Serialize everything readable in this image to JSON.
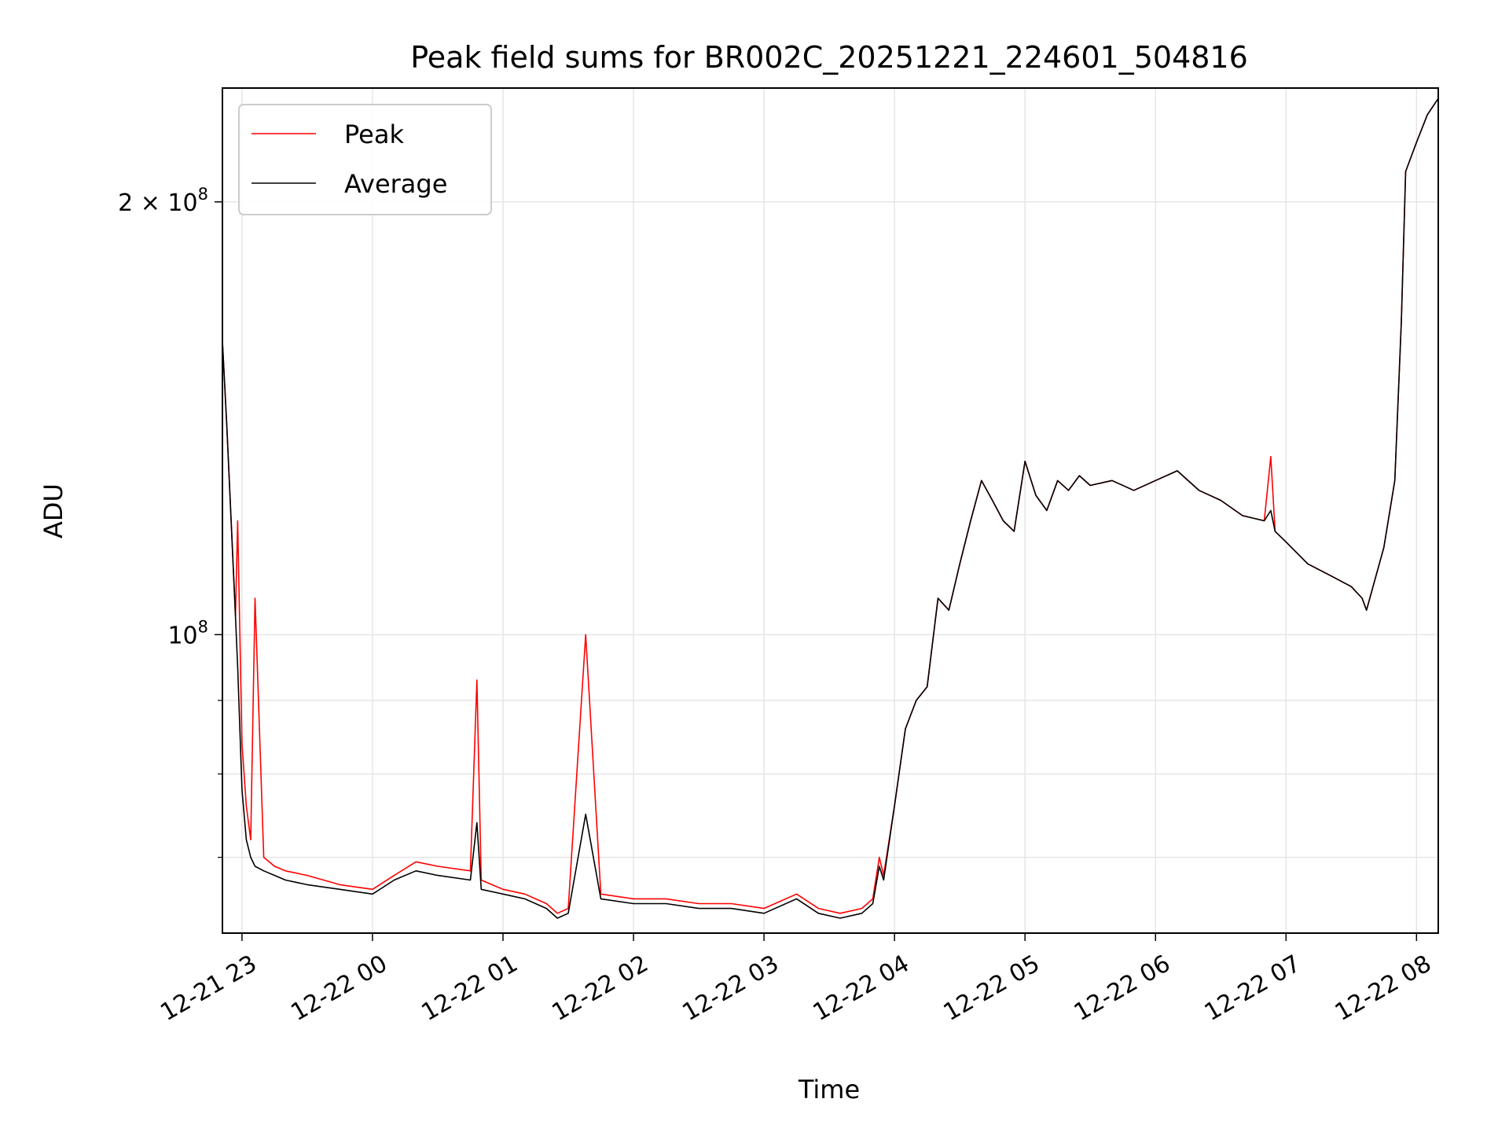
{
  "chart_data": {
    "type": "line",
    "title": "Peak field sums for BR002C_20251221_224601_504816",
    "xlabel": "Time",
    "ylabel": "ADU",
    "yscale": "log",
    "xlim": [
      "2025-12-21 22:51",
      "2025-12-22 08:10"
    ],
    "ylim": [
      62000000,
      240000000
    ],
    "x_ticks": [
      "12-21 23",
      "12-22 00",
      "12-22 01",
      "12-22 02",
      "12-22 03",
      "12-22 04",
      "12-22 05",
      "12-22 06",
      "12-22 07",
      "12-22 08"
    ],
    "y_ticks": [
      {
        "value": 100000000,
        "base": "10",
        "exp": "8",
        "mult": ""
      },
      {
        "value": 200000000,
        "base": "10",
        "exp": "8",
        "mult": "2 × "
      }
    ],
    "grid": true,
    "legend": {
      "position": "top-left",
      "entries": [
        "Peak",
        "Average"
      ]
    },
    "series": [
      {
        "name": "Peak",
        "color": "#ff0000",
        "x": [
          "2025-12-21 22:51",
          "2025-12-21 22:53",
          "2025-12-21 22:55",
          "2025-12-21 22:57",
          "2025-12-21 22:58",
          "2025-12-21 23:00",
          "2025-12-21 23:02",
          "2025-12-21 23:04",
          "2025-12-21 23:06",
          "2025-12-21 23:10",
          "2025-12-21 23:15",
          "2025-12-21 23:20",
          "2025-12-21 23:30",
          "2025-12-21 23:45",
          "2025-12-22 00:00",
          "2025-12-22 00:10",
          "2025-12-22 00:20",
          "2025-12-22 00:30",
          "2025-12-22 00:45",
          "2025-12-22 00:48",
          "2025-12-22 00:50",
          "2025-12-22 01:00",
          "2025-12-22 01:10",
          "2025-12-22 01:20",
          "2025-12-22 01:25",
          "2025-12-22 01:30",
          "2025-12-22 01:38",
          "2025-12-22 01:45",
          "2025-12-22 02:00",
          "2025-12-22 02:15",
          "2025-12-22 02:30",
          "2025-12-22 02:45",
          "2025-12-22 03:00",
          "2025-12-22 03:15",
          "2025-12-22 03:25",
          "2025-12-22 03:35",
          "2025-12-22 03:45",
          "2025-12-22 03:50",
          "2025-12-22 03:53",
          "2025-12-22 03:55",
          "2025-12-22 04:00",
          "2025-12-22 04:05",
          "2025-12-22 04:10",
          "2025-12-22 04:15",
          "2025-12-22 04:20",
          "2025-12-22 04:25",
          "2025-12-22 04:30",
          "2025-12-22 04:35",
          "2025-12-22 04:40",
          "2025-12-22 04:45",
          "2025-12-22 04:50",
          "2025-12-22 04:55",
          "2025-12-22 05:00",
          "2025-12-22 05:05",
          "2025-12-22 05:10",
          "2025-12-22 05:15",
          "2025-12-22 05:20",
          "2025-12-22 05:25",
          "2025-12-22 05:30",
          "2025-12-22 05:40",
          "2025-12-22 05:50",
          "2025-12-22 06:00",
          "2025-12-22 06:10",
          "2025-12-22 06:20",
          "2025-12-22 06:30",
          "2025-12-22 06:40",
          "2025-12-22 06:50",
          "2025-12-22 06:53",
          "2025-12-22 06:55",
          "2025-12-22 07:00",
          "2025-12-22 07:10",
          "2025-12-22 07:20",
          "2025-12-22 07:30",
          "2025-12-22 07:35",
          "2025-12-22 07:37",
          "2025-12-22 07:40",
          "2025-12-22 07:45",
          "2025-12-22 07:50",
          "2025-12-22 07:53",
          "2025-12-22 07:55",
          "2025-12-22 08:00",
          "2025-12-22 08:05",
          "2025-12-22 08:10"
        ],
        "y": [
          160000000,
          140000000,
          120000000,
          103000000,
          120000000,
          84000000,
          76000000,
          72000000,
          106000000,
          70000000,
          69000000,
          68500000,
          68000000,
          67000000,
          66500000,
          68000000,
          69500000,
          69000000,
          68500000,
          93000000,
          67500000,
          66500000,
          66000000,
          65000000,
          64000000,
          64500000,
          100000000,
          66000000,
          65500000,
          65500000,
          65000000,
          65000000,
          64500000,
          66000000,
          64500000,
          64000000,
          64500000,
          65500000,
          70000000,
          68000000,
          76000000,
          86000000,
          90000000,
          92000000,
          106000000,
          104000000,
          112000000,
          120000000,
          128000000,
          124000000,
          120000000,
          118000000,
          132000000,
          125000000,
          122000000,
          128000000,
          126000000,
          129000000,
          127000000,
          128000000,
          126000000,
          128000000,
          130000000,
          126000000,
          124000000,
          121000000,
          120000000,
          133000000,
          118000000,
          116000000,
          112000000,
          110000000,
          108000000,
          106000000,
          104000000,
          108000000,
          115000000,
          128000000,
          165000000,
          210000000,
          220000000,
          230000000,
          236000000
        ]
      },
      {
        "name": "Average",
        "color": "#000000",
        "x": [
          "2025-12-21 22:51",
          "2025-12-21 22:53",
          "2025-12-21 22:55",
          "2025-12-21 22:57",
          "2025-12-21 22:58",
          "2025-12-21 23:00",
          "2025-12-21 23:02",
          "2025-12-21 23:04",
          "2025-12-21 23:06",
          "2025-12-21 23:10",
          "2025-12-21 23:15",
          "2025-12-21 23:20",
          "2025-12-21 23:30",
          "2025-12-21 23:45",
          "2025-12-22 00:00",
          "2025-12-22 00:10",
          "2025-12-22 00:20",
          "2025-12-22 00:30",
          "2025-12-22 00:45",
          "2025-12-22 00:48",
          "2025-12-22 00:50",
          "2025-12-22 01:00",
          "2025-12-22 01:10",
          "2025-12-22 01:20",
          "2025-12-22 01:25",
          "2025-12-22 01:30",
          "2025-12-22 01:38",
          "2025-12-22 01:45",
          "2025-12-22 02:00",
          "2025-12-22 02:15",
          "2025-12-22 02:30",
          "2025-12-22 02:45",
          "2025-12-22 03:00",
          "2025-12-22 03:15",
          "2025-12-22 03:25",
          "2025-12-22 03:35",
          "2025-12-22 03:45",
          "2025-12-22 03:50",
          "2025-12-22 03:53",
          "2025-12-22 03:55",
          "2025-12-22 04:00",
          "2025-12-22 04:05",
          "2025-12-22 04:10",
          "2025-12-22 04:15",
          "2025-12-22 04:20",
          "2025-12-22 04:25",
          "2025-12-22 04:30",
          "2025-12-22 04:35",
          "2025-12-22 04:40",
          "2025-12-22 04:45",
          "2025-12-22 04:50",
          "2025-12-22 04:55",
          "2025-12-22 05:00",
          "2025-12-22 05:05",
          "2025-12-22 05:10",
          "2025-12-22 05:15",
          "2025-12-22 05:20",
          "2025-12-22 05:25",
          "2025-12-22 05:30",
          "2025-12-22 05:40",
          "2025-12-22 05:50",
          "2025-12-22 06:00",
          "2025-12-22 06:10",
          "2025-12-22 06:20",
          "2025-12-22 06:30",
          "2025-12-22 06:40",
          "2025-12-22 06:50",
          "2025-12-22 06:53",
          "2025-12-22 06:55",
          "2025-12-22 07:00",
          "2025-12-22 07:10",
          "2025-12-22 07:20",
          "2025-12-22 07:30",
          "2025-12-22 07:35",
          "2025-12-22 07:37",
          "2025-12-22 07:40",
          "2025-12-22 07:45",
          "2025-12-22 07:50",
          "2025-12-22 07:53",
          "2025-12-22 07:55",
          "2025-12-22 08:00",
          "2025-12-22 08:05",
          "2025-12-22 08:10"
        ],
        "y": [
          160000000,
          140000000,
          120000000,
          103000000,
          95000000,
          78000000,
          72000000,
          70000000,
          69000000,
          68500000,
          68000000,
          67500000,
          67000000,
          66500000,
          66000000,
          67500000,
          68500000,
          68000000,
          67500000,
          74000000,
          66500000,
          66000000,
          65500000,
          64500000,
          63500000,
          64000000,
          75000000,
          65500000,
          65000000,
          65000000,
          64500000,
          64500000,
          64000000,
          65500000,
          64000000,
          63500000,
          64000000,
          65000000,
          69000000,
          67500000,
          76000000,
          86000000,
          90000000,
          92000000,
          106000000,
          104000000,
          112000000,
          120000000,
          128000000,
          124000000,
          120000000,
          118000000,
          132000000,
          125000000,
          122000000,
          128000000,
          126000000,
          129000000,
          127000000,
          128000000,
          126000000,
          128000000,
          130000000,
          126000000,
          124000000,
          121000000,
          120000000,
          122000000,
          118000000,
          116000000,
          112000000,
          110000000,
          108000000,
          106000000,
          104000000,
          108000000,
          115000000,
          128000000,
          165000000,
          210000000,
          220000000,
          230000000,
          236000000
        ]
      }
    ]
  }
}
